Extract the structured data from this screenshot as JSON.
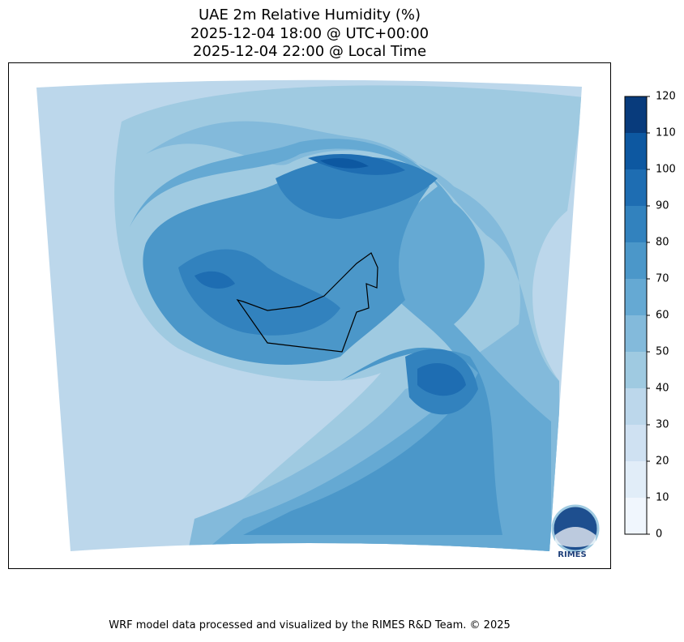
{
  "chart_data": {
    "type": "contour",
    "title": [
      "UAE 2m Relative Humidity (%)",
      "2025-12-04 18:00 @ UTC+00:00",
      "2025-12-04 22:00 @ Local Time"
    ],
    "colorbar": {
      "levels": [
        0,
        10,
        20,
        30,
        40,
        50,
        60,
        70,
        80,
        90,
        100,
        110,
        120
      ],
      "colors": [
        "#f0f6fd",
        "#e1edf8",
        "#cfe1f2",
        "#bcd7eb",
        "#9fcae1",
        "#83badb",
        "#65a9d3",
        "#4b97c9",
        "#3282be",
        "#1e6db2",
        "#0d58a1",
        "#083b7c"
      ]
    }
  },
  "logo": "RIMES",
  "footer": "WRF model data processed and visualized by the RIMES R&D Team. © 2025"
}
